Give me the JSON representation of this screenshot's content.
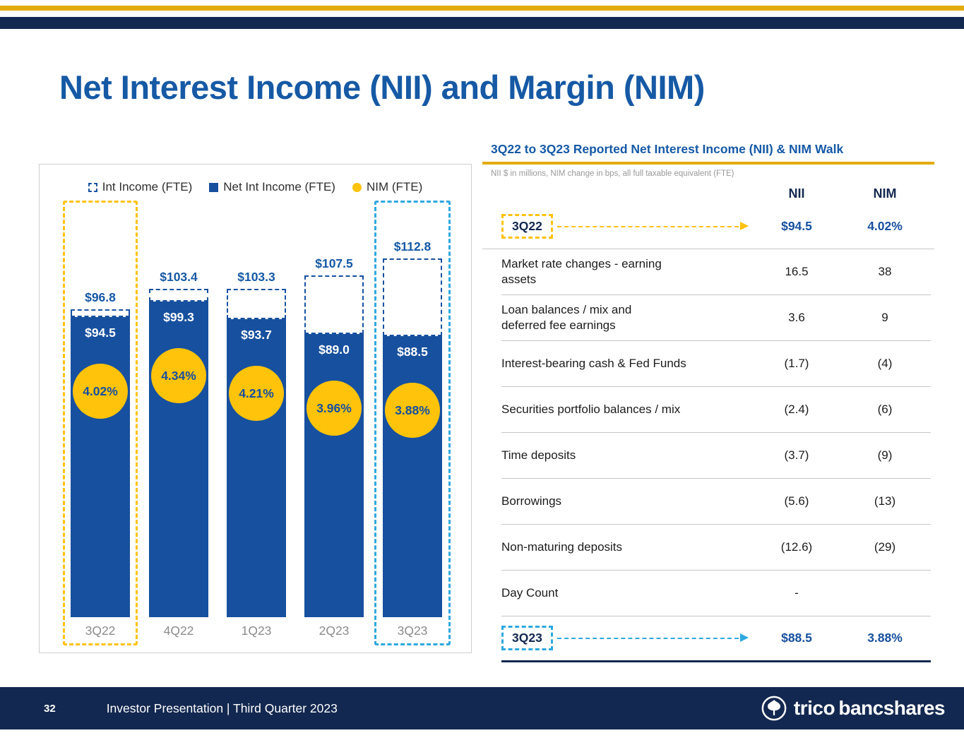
{
  "slide": {
    "title": "Net Interest Income (NII) and Margin (NIM)",
    "page_number": "32",
    "footer_text": "Investor Presentation | Third Quarter 2023",
    "brand": "trico bancshares"
  },
  "colors": {
    "navy_bar": "#17509E",
    "dark_navy": "#132850",
    "title_blue": "#1659A5",
    "gold": "#E2AC0E",
    "yellow": "#FFC20E",
    "nim_circle_yellow": "#FFC30B",
    "cyan": "#2FA8DF"
  },
  "legend": {
    "int_income": "Int Income (FTE)",
    "net_int_income": "Net Int Income (FTE)",
    "nim": "NIM (FTE)"
  },
  "chart_data": {
    "type": "bar",
    "title": "Net Interest Income (NII) and Margin (NIM)",
    "categories": [
      "3Q22",
      "4Q22",
      "1Q23",
      "2Q23",
      "3Q23"
    ],
    "series": [
      {
        "name": "Int Income (FTE)",
        "values": [
          96.8,
          103.4,
          103.3,
          107.5,
          112.8
        ]
      },
      {
        "name": "Net Int Income (FTE)",
        "values": [
          94.5,
          99.3,
          93.7,
          89.0,
          88.5
        ]
      },
      {
        "name": "NIM (FTE)",
        "values": [
          4.02,
          4.34,
          4.21,
          3.96,
          3.88
        ]
      }
    ],
    "int_income_labels": [
      "$96.8",
      "$103.4",
      "$103.3",
      "$107.5",
      "$112.8"
    ],
    "net_int_income_labels": [
      "$94.5",
      "$99.3",
      "$93.7",
      "$89.0",
      "$88.5"
    ],
    "nim_labels": [
      "4.02%",
      "4.34%",
      "4.21%",
      "3.96%",
      "3.88%"
    ],
    "highlighted_categories": [
      "3Q22",
      "3Q23"
    ],
    "xlabel": "",
    "ylabel": "",
    "ylim": [
      0,
      120
    ],
    "grid": false,
    "legend_position": "top"
  },
  "walk": {
    "title": "3Q22 to 3Q23 Reported Net Interest Income (NII) & NIM Walk",
    "subtitle": "NII $ in millions, NIM change in bps, all full taxable equivalent (FTE)",
    "col_nii": "NII",
    "col_nim": "NIM",
    "start": {
      "label": "3Q22",
      "nii": "$94.5",
      "nim": "4.02%"
    },
    "rows": [
      {
        "label": "Market rate changes - earning assets",
        "nii": "16.5",
        "nim": "38"
      },
      {
        "label": "Loan balances / mix and deferred fee earnings",
        "nii": "3.6",
        "nim": "9"
      },
      {
        "label": "Interest-bearing cash & Fed Funds",
        "nii": "(1.7)",
        "nim": "(4)"
      },
      {
        "label": "Securities portfolio balances / mix",
        "nii": "(2.4)",
        "nim": "(6)"
      },
      {
        "label": "Time deposits",
        "nii": "(3.7)",
        "nim": "(9)"
      },
      {
        "label": "Borrowings",
        "nii": "(5.6)",
        "nim": "(13)"
      },
      {
        "label": "Non-maturing deposits",
        "nii": "(12.6)",
        "nim": "(29)"
      },
      {
        "label": "Day Count",
        "nii": "-",
        "nim": ""
      }
    ],
    "end": {
      "label": "3Q23",
      "nii": "$88.5",
      "nim": "3.88%"
    }
  }
}
